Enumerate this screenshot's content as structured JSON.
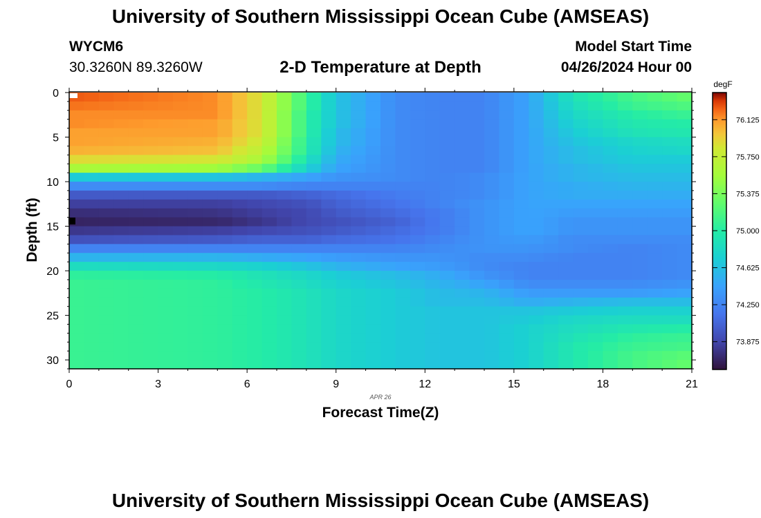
{
  "header": {
    "title": "University of Southern Mississippi Ocean Cube (AMSEAS)",
    "station_id": "WYCM6",
    "coordinates": "30.3260N  89.3260W",
    "model_start_label": "Model Start Time",
    "model_start_value": "04/26/2024 Hour 00"
  },
  "footer": {
    "title": "University of Southern Mississippi Ocean Cube (AMSEAS)"
  },
  "chart_data": {
    "type": "heatmap",
    "title": "2-D Temperature at Depth",
    "xlabel": "Forecast Time(Z)",
    "ylabel": "Depth (ft)",
    "date_label": "APR 26",
    "xlim": [
      0,
      21
    ],
    "ylim": [
      0,
      31
    ],
    "x_ticks": [
      0,
      3,
      6,
      9,
      12,
      15,
      18,
      21
    ],
    "x_tick_labels": [
      "0",
      "3",
      "6",
      "9",
      "12",
      "15",
      "18",
      "21"
    ],
    "y_ticks": [
      0,
      5,
      10,
      15,
      20,
      25,
      30
    ],
    "y_tick_labels": [
      "0",
      "5",
      "10",
      "15",
      "20",
      "25",
      "30"
    ],
    "colorbar": {
      "unit": "degF",
      "range": [
        73.6,
        76.4
      ],
      "ticks": [
        76.125,
        75.75,
        75.375,
        75.0,
        74.625,
        74.25,
        73.875
      ],
      "tick_labels": [
        "76.125",
        "75.750",
        "75.375",
        "75.000",
        "74.625",
        "74.250",
        "73.875"
      ]
    },
    "time_columns": 42,
    "depth_levels": [
      0.5,
      1.5,
      2.5,
      3.5,
      4.5,
      5.5,
      6.5,
      7.5,
      8.5,
      9.5,
      10.5,
      11.5,
      12.5,
      13.5,
      14.5,
      15.5,
      16.5,
      17.5,
      18.5,
      19.5,
      20.5,
      21.5,
      22.5,
      23.5,
      24.5,
      25.5,
      26.5,
      27.5,
      28.5,
      29.5,
      30.5
    ],
    "keyframes_x": [
      0,
      5,
      6.5,
      8,
      9,
      11,
      12.5,
      14,
      15.5,
      17,
      19,
      21
    ],
    "profiles_degF": [
      [
        76.25,
        76.15,
        75.85,
        75.1,
        74.65,
        74.3,
        74.25,
        74.25,
        74.45,
        74.9,
        75.15,
        75.3
      ],
      [
        76.2,
        76.15,
        75.85,
        75.1,
        74.65,
        74.3,
        74.25,
        74.25,
        74.45,
        74.85,
        75.1,
        75.2
      ],
      [
        76.15,
        76.15,
        75.85,
        75.05,
        74.65,
        74.3,
        74.25,
        74.25,
        74.45,
        74.8,
        75.0,
        75.1
      ],
      [
        76.15,
        76.1,
        75.85,
        75.05,
        74.65,
        74.3,
        74.25,
        74.25,
        74.45,
        74.75,
        74.95,
        75.0
      ],
      [
        76.1,
        76.1,
        75.85,
        75.05,
        74.6,
        74.3,
        74.25,
        74.25,
        74.45,
        74.7,
        74.9,
        74.95
      ],
      [
        76.1,
        76.05,
        75.8,
        75.0,
        74.6,
        74.3,
        74.25,
        74.25,
        74.45,
        74.65,
        74.8,
        74.85
      ],
      [
        76.05,
        76.0,
        75.7,
        75.0,
        74.55,
        74.3,
        74.25,
        74.25,
        74.45,
        74.6,
        74.75,
        74.8
      ],
      [
        75.9,
        75.85,
        75.6,
        74.9,
        74.5,
        74.3,
        74.25,
        74.25,
        74.45,
        74.6,
        74.7,
        74.7
      ],
      [
        75.6,
        75.55,
        75.3,
        74.75,
        74.45,
        74.3,
        74.25,
        74.25,
        74.45,
        74.55,
        74.65,
        74.65
      ],
      [
        74.7,
        74.65,
        74.55,
        74.45,
        74.35,
        74.3,
        74.25,
        74.3,
        74.45,
        74.55,
        74.6,
        74.6
      ],
      [
        74.3,
        74.3,
        74.3,
        74.25,
        74.25,
        74.25,
        74.25,
        74.3,
        74.45,
        74.5,
        74.55,
        74.55
      ],
      [
        74.0,
        74.0,
        74.0,
        74.05,
        74.1,
        74.2,
        74.25,
        74.3,
        74.45,
        74.5,
        74.5,
        74.5
      ],
      [
        73.85,
        73.85,
        73.9,
        73.95,
        74.05,
        74.15,
        74.25,
        74.35,
        74.45,
        74.45,
        74.45,
        74.45
      ],
      [
        73.75,
        73.78,
        73.85,
        73.9,
        74.0,
        74.1,
        74.2,
        74.35,
        74.45,
        74.4,
        74.4,
        74.4
      ],
      [
        73.7,
        73.72,
        73.8,
        73.9,
        73.95,
        74.05,
        74.2,
        74.35,
        74.45,
        74.35,
        74.35,
        74.35
      ],
      [
        73.8,
        73.85,
        73.9,
        73.95,
        74.0,
        74.1,
        74.2,
        74.35,
        74.45,
        74.35,
        74.35,
        74.35
      ],
      [
        73.95,
        74.0,
        74.05,
        74.05,
        74.1,
        74.15,
        74.25,
        74.35,
        74.4,
        74.3,
        74.3,
        74.3
      ],
      [
        74.25,
        74.25,
        74.25,
        74.25,
        74.25,
        74.25,
        74.3,
        74.35,
        74.35,
        74.3,
        74.25,
        74.3
      ],
      [
        74.55,
        74.55,
        74.5,
        74.45,
        74.4,
        74.35,
        74.35,
        74.3,
        74.3,
        74.25,
        74.25,
        74.3
      ],
      [
        74.85,
        74.8,
        74.75,
        74.65,
        74.55,
        74.45,
        74.4,
        74.3,
        74.25,
        74.25,
        74.25,
        74.3
      ],
      [
        75.05,
        75.0,
        74.9,
        74.8,
        74.7,
        74.6,
        74.5,
        74.35,
        74.25,
        74.25,
        74.25,
        74.3
      ],
      [
        75.1,
        75.05,
        74.95,
        74.85,
        74.75,
        74.65,
        74.55,
        74.45,
        74.3,
        74.3,
        74.3,
        74.35
      ],
      [
        75.1,
        75.05,
        75.0,
        74.9,
        74.8,
        74.7,
        74.6,
        74.55,
        74.4,
        74.4,
        74.4,
        74.45
      ],
      [
        75.1,
        75.05,
        75.0,
        74.9,
        74.8,
        74.7,
        74.6,
        74.6,
        74.5,
        74.55,
        74.6,
        74.6
      ],
      [
        75.1,
        75.05,
        75.0,
        74.9,
        74.8,
        74.7,
        74.65,
        74.65,
        74.65,
        74.7,
        74.75,
        74.75
      ],
      [
        75.1,
        75.05,
        75.0,
        74.9,
        74.8,
        74.7,
        74.65,
        74.65,
        74.7,
        74.8,
        74.85,
        74.85
      ],
      [
        75.1,
        75.05,
        75.0,
        74.9,
        74.8,
        74.7,
        74.65,
        74.65,
        74.75,
        74.85,
        74.95,
        75.0
      ],
      [
        75.1,
        75.05,
        75.0,
        74.9,
        74.8,
        74.7,
        74.65,
        74.65,
        74.75,
        74.9,
        75.05,
        75.1
      ],
      [
        75.1,
        75.05,
        75.0,
        74.9,
        74.8,
        74.7,
        74.65,
        74.65,
        74.75,
        74.95,
        75.1,
        75.15
      ],
      [
        75.1,
        75.05,
        75.0,
        74.9,
        74.8,
        74.7,
        74.65,
        74.65,
        74.75,
        74.95,
        75.15,
        75.25
      ],
      [
        75.1,
        75.05,
        75.0,
        74.9,
        74.8,
        74.7,
        74.65,
        74.65,
        74.75,
        74.95,
        75.15,
        75.3
      ]
    ]
  }
}
